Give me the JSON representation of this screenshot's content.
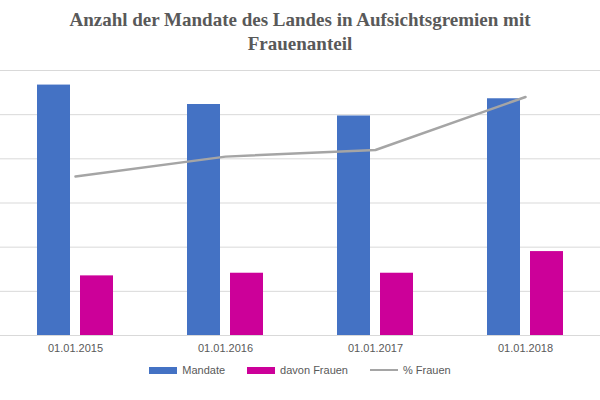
{
  "chart_data": {
    "type": "bar",
    "title": "Anzahl der Mandate des Landes in Aufsichtsgremien mit Frauenanteil",
    "categories": [
      "01.01.2015",
      "01.01.2016",
      "01.01.2017",
      "01.01.2018"
    ],
    "series": [
      {
        "name": "Mandate",
        "color": "#4472c4",
        "values": [
          567,
          523,
          497,
          536
        ]
      },
      {
        "name": "davon Frauen",
        "color": "#cc0099",
        "values": [
          135,
          141,
          141,
          190
        ]
      },
      {
        "name": "% Frauen",
        "type": "line",
        "axis": "y2",
        "color": "#a5a5a5",
        "values": [
          24,
          27,
          28,
          36
        ]
      }
    ],
    "ylim": [
      0,
      600
    ],
    "yticks": [
      0,
      100,
      200,
      300,
      400,
      500,
      600
    ],
    "y2lim": [
      0,
      40
    ],
    "grid": true,
    "tick_labels": "x",
    "legend": "bottom"
  }
}
